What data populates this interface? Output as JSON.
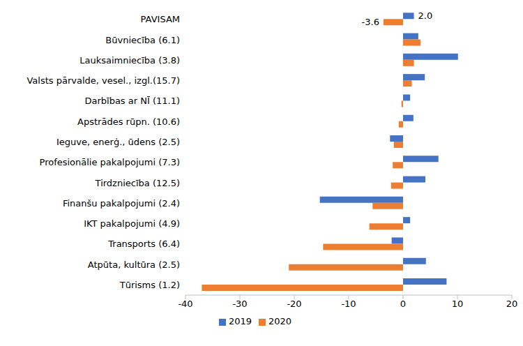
{
  "chart_data": {
    "type": "bar",
    "orientation": "horizontal",
    "categories": [
      "PAVISAM",
      "Būvniecība (6.1)",
      "Lauksaimniecība (3.8)",
      "Valsts pārvalde, vesel., izgl.(15.7)",
      "Darbības ar NĪ (11.1)",
      "Apstrādes rūpn. (10.6)",
      "Ieguve, enerģ., ūdens (2.5)",
      "Profesionālie pakalpojumi (7.3)",
      "Tirdzniecība (12.5)",
      "Finanšu pakalpojumi (2.4)",
      "IKT pakalpojumi (4.9)",
      "Transports (6.4)",
      "Atpūta, kultūra (2.5)",
      "Tūrisms (1.2)"
    ],
    "series": [
      {
        "name": "2019",
        "color": "#4472c4",
        "values": [
          2.0,
          2.8,
          10.1,
          4.0,
          1.3,
          1.9,
          -2.4,
          6.5,
          4.1,
          -15.3,
          1.3,
          -2.1,
          4.2,
          8.0
        ],
        "value_labels": [
          "2.0",
          null,
          null,
          null,
          null,
          null,
          null,
          null,
          null,
          null,
          null,
          null,
          null,
          null
        ]
      },
      {
        "name": "2020",
        "color": "#ed7d31",
        "values": [
          -3.6,
          3.2,
          2.0,
          1.6,
          -0.3,
          -0.8,
          -1.7,
          -1.9,
          -2.2,
          -5.6,
          -6.2,
          -14.7,
          -21.0,
          -37.0
        ],
        "value_labels": [
          "-3.6",
          null,
          null,
          null,
          null,
          null,
          null,
          null,
          null,
          null,
          null,
          null,
          null,
          null
        ]
      }
    ],
    "xlim": [
      -40,
      20
    ],
    "xticks": [
      -40,
      -30,
      -20,
      -10,
      0,
      10,
      20
    ],
    "grid": false,
    "legend": "bottom",
    "data_labels": true
  }
}
